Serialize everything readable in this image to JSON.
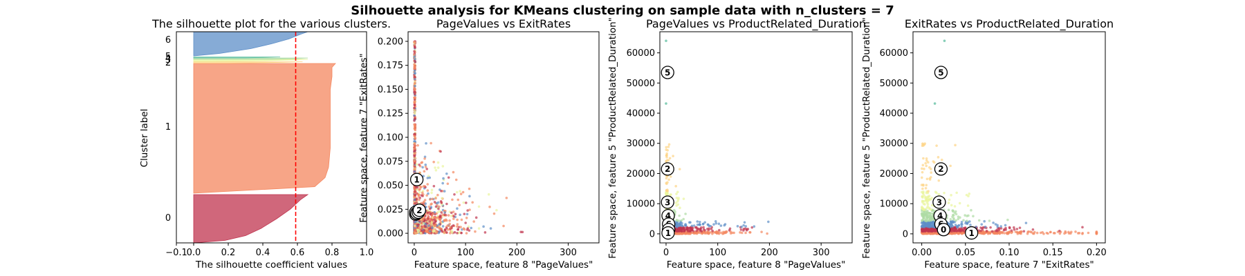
{
  "suptitle": "Silhouette analysis for KMeans clustering on sample data with n_clusters = 7",
  "chart_data": [
    {
      "type": "area",
      "title": "The silhouette plot for the various clusters.",
      "xlabel": "The silhouette coefficient values",
      "ylabel": "Cluster label",
      "xlim": [
        -0.1,
        1.0
      ],
      "xticks": [
        -0.1,
        0.0,
        0.2,
        0.4,
        0.6,
        0.8,
        1.0
      ],
      "xtick_labels": [
        "−0.1",
        "0.0",
        "0.2",
        "0.4",
        "0.6",
        "0.8",
        "1.0"
      ],
      "average_silhouette_score": 0.59,
      "clusters": [
        {
          "label": "0",
          "color": "#c0344f",
          "max_value": 0.66,
          "shape": [
            [
              0,
              0.66
            ],
            [
              0.1,
              0.62
            ],
            [
              0.3,
              0.56
            ],
            [
              0.5,
              0.48
            ],
            [
              0.7,
              0.39
            ],
            [
              0.85,
              0.3
            ],
            [
              0.95,
              0.18
            ],
            [
              1,
              0.0
            ]
          ]
        },
        {
          "label": "1",
          "color": "#f4875f",
          "max_value": 0.82,
          "shape": [
            [
              0,
              0.82
            ],
            [
              0.03,
              0.8
            ],
            [
              0.1,
              0.8
            ],
            [
              0.2,
              0.79
            ],
            [
              0.35,
              0.79
            ],
            [
              0.5,
              0.79
            ],
            [
              0.65,
              0.79
            ],
            [
              0.8,
              0.78
            ],
            [
              0.88,
              0.76
            ],
            [
              0.95,
              0.7
            ],
            [
              1,
              0.0
            ]
          ]
        },
        {
          "label": "2",
          "color": "#fdd486",
          "max_value": 0.63,
          "shape": [
            [
              0,
              0.63
            ],
            [
              0.5,
              0.5
            ],
            [
              1,
              0.2
            ]
          ]
        },
        {
          "label": "3",
          "color": "#e9f59c",
          "max_value": 0.66,
          "shape": [
            [
              0,
              0.66
            ],
            [
              0.3,
              0.6
            ],
            [
              0.7,
              0.4
            ],
            [
              1,
              0.1
            ]
          ]
        },
        {
          "label": "4",
          "color": "#aedca4",
          "max_value": 0.66,
          "shape": [
            [
              0,
              0.66
            ],
            [
              0.3,
              0.62
            ],
            [
              0.7,
              0.55
            ],
            [
              1,
              0.45
            ]
          ]
        },
        {
          "label": "5",
          "color": "#66c2a5",
          "max_value": 0.5,
          "shape": [
            [
              0,
              0.5
            ],
            [
              1,
              0.3
            ]
          ]
        },
        {
          "label": "6",
          "color": "#5e8fc8",
          "max_value": 0.66,
          "shape": [
            [
              0,
              0.66
            ],
            [
              0.1,
              0.62
            ],
            [
              0.3,
              0.55
            ],
            [
              0.5,
              0.45
            ],
            [
              0.7,
              0.33
            ],
            [
              0.9,
              0.15
            ],
            [
              1,
              0.0
            ]
          ]
        }
      ]
    },
    {
      "type": "scatter",
      "title": "PageValues vs ExitRates",
      "xlabel": "Feature space, feature 8 \"PageValues\"",
      "ylabel": "Feature space, feature 7 \"ExitRates\"",
      "xlim": [
        -12,
        360
      ],
      "ylim": [
        -0.01,
        0.21
      ],
      "xticks": [
        0,
        100,
        200,
        300
      ],
      "yticks": [
        0.0,
        0.025,
        0.05,
        0.075,
        0.1,
        0.125,
        0.15,
        0.175,
        0.2
      ],
      "ytick_labels": [
        "0.000",
        "0.025",
        "0.050",
        "0.075",
        "0.100",
        "0.125",
        "0.150",
        "0.175",
        "0.200"
      ],
      "centers": [
        {
          "label": "1",
          "x": 5,
          "y": 0.056
        },
        {
          "label": "6",
          "x": 3,
          "y": 0.02
        },
        {
          "label": "5",
          "x": 3,
          "y": 0.022
        },
        {
          "label": "4",
          "x": 5,
          "y": 0.021
        },
        {
          "label": "3",
          "x": 8,
          "y": 0.022
        },
        {
          "label": "2",
          "x": 10,
          "y": 0.024
        }
      ]
    },
    {
      "type": "scatter",
      "title": "PageValues vs ProductRelated_Duration",
      "xlabel": "Feature space, feature 8 \"PageValues\"",
      "ylabel": "Feature space, feature 5 \"ProductRelated_Duration\"",
      "xlim": [
        -12,
        360
      ],
      "ylim": [
        -3000,
        67000
      ],
      "xticks": [
        0,
        100,
        200,
        300
      ],
      "yticks": [
        0,
        10000,
        20000,
        30000,
        40000,
        50000,
        60000
      ],
      "centers": [
        {
          "label": "5",
          "x": 3,
          "y": 53500
        },
        {
          "label": "2",
          "x": 3,
          "y": 21500
        },
        {
          "label": "3",
          "x": 3,
          "y": 10500
        },
        {
          "label": "4",
          "x": 4,
          "y": 6000
        },
        {
          "label": "6",
          "x": 5,
          "y": 3200
        },
        {
          "label": "0",
          "x": 5,
          "y": 1400
        },
        {
          "label": "1",
          "x": 4,
          "y": 300
        }
      ]
    },
    {
      "type": "scatter",
      "title": "ExitRates vs ProductRelated_Duration",
      "xlabel": "Feature space, feature 7 \"ExitRates\"",
      "ylabel": "Feature space, feature 5 \"ProductRelated_Duration\"",
      "xlim": [
        -0.01,
        0.21
      ],
      "ylim": [
        -3000,
        67000
      ],
      "xticks": [
        0.0,
        0.05,
        0.1,
        0.15,
        0.2
      ],
      "xtick_labels": [
        "0.00",
        "0.05",
        "0.10",
        "0.15",
        "0.20"
      ],
      "yticks": [
        0,
        10000,
        20000,
        30000,
        40000,
        50000,
        60000
      ],
      "centers": [
        {
          "label": "5",
          "x": 0.022,
          "y": 53500
        },
        {
          "label": "2",
          "x": 0.022,
          "y": 21500
        },
        {
          "label": "3",
          "x": 0.02,
          "y": 10500
        },
        {
          "label": "4",
          "x": 0.021,
          "y": 6000
        },
        {
          "label": "6",
          "x": 0.022,
          "y": 3200
        },
        {
          "label": "0",
          "x": 0.025,
          "y": 1400
        },
        {
          "label": "1",
          "x": 0.057,
          "y": 300
        }
      ]
    }
  ]
}
